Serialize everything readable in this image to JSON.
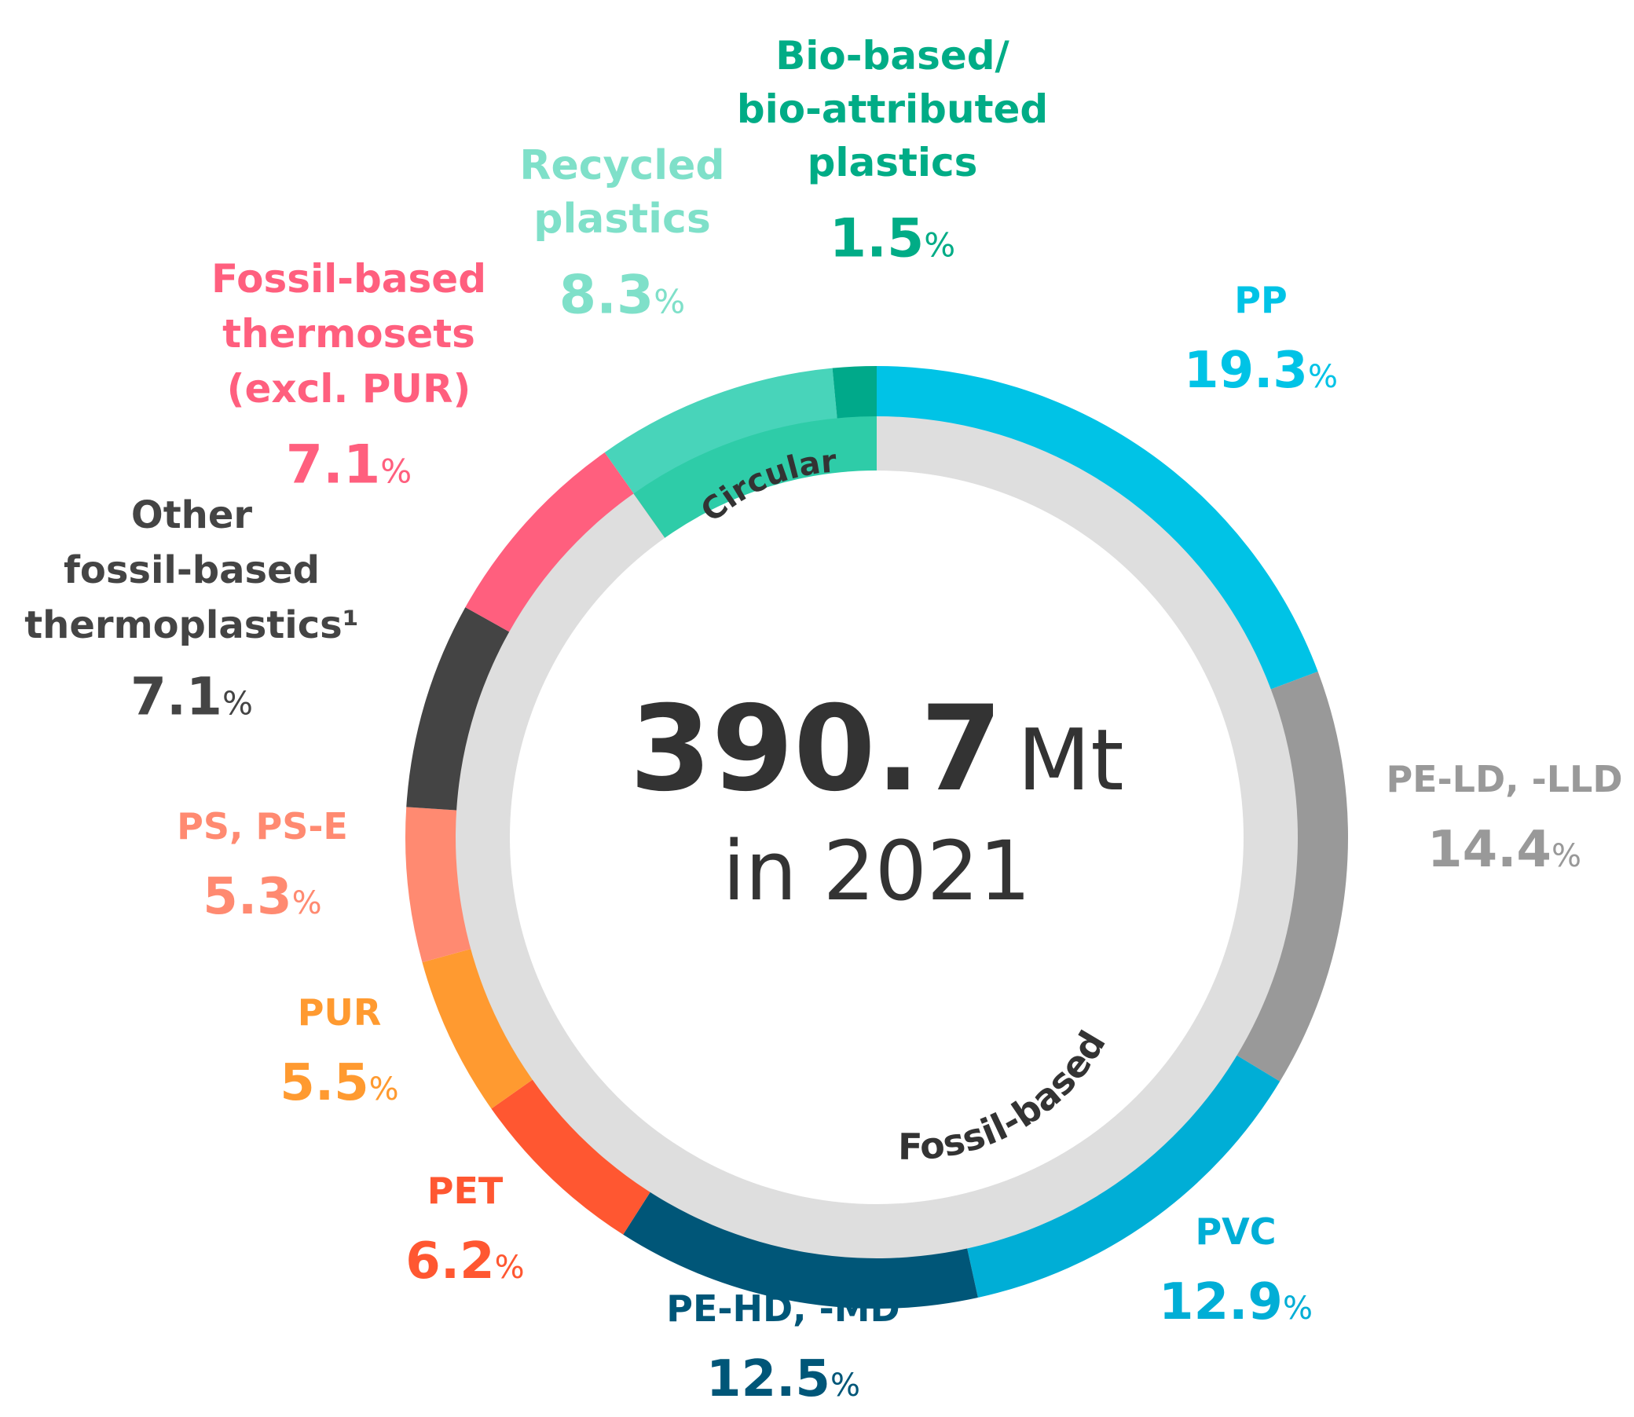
{
  "chart_data": {
    "type": "pie",
    "subtype": "donut",
    "unit_suffix": "%",
    "center": {
      "value": "390.7",
      "unit": "Mt",
      "subtitle": "in 2021"
    },
    "inner_ring": [
      {
        "name": "Circular",
        "value": 9.8,
        "color": "#2ECCA8"
      },
      {
        "name": "Fossil-based",
        "value": 90.2,
        "color": "#DEDEDE"
      }
    ],
    "slices": [
      {
        "key": "pp",
        "lines": [
          "PP"
        ],
        "value": 19.3,
        "value_text": "19.3",
        "color": "#00C3E6"
      },
      {
        "key": "peld",
        "lines": [
          "PE-LD, -LLD"
        ],
        "value": 14.4,
        "value_text": "14.4",
        "color": "#999999"
      },
      {
        "key": "pvc",
        "lines": [
          "PVC"
        ],
        "value": 12.9,
        "value_text": "12.9",
        "color": "#00AED6"
      },
      {
        "key": "pehd",
        "lines": [
          "PE-HD, -MD"
        ],
        "value": 12.5,
        "value_text": "12.5",
        "color": "#005678"
      },
      {
        "key": "pet",
        "lines": [
          "PET"
        ],
        "value": 6.2,
        "value_text": "6.2",
        "color": "#FF5731"
      },
      {
        "key": "pur",
        "lines": [
          "PUR"
        ],
        "value": 5.5,
        "value_text": "5.5",
        "color": "#FF9A30"
      },
      {
        "key": "ps",
        "lines": [
          "PS, PS-E"
        ],
        "value": 5.3,
        "value_text": "5.3",
        "color": "#FF8A71"
      },
      {
        "key": "other",
        "lines": [
          "Other",
          "fossil-based",
          "thermoplastics¹"
        ],
        "value": 7.1,
        "value_text": "7.1",
        "color": "#444444"
      },
      {
        "key": "thermosets",
        "lines": [
          "Fossil-based",
          "thermosets",
          "(excl. PUR)"
        ],
        "value": 7.1,
        "value_text": "7.1",
        "color": "#FF5F7E"
      },
      {
        "key": "recycled",
        "lines": [
          "Recycled",
          "plastics"
        ],
        "value": 8.3,
        "value_text": "8.3",
        "color": "#48D4BA",
        "label_color": "#7FE0C9"
      },
      {
        "key": "bio",
        "lines": [
          "Bio-based/",
          "bio-attributed",
          "plastics"
        ],
        "value": 1.5,
        "value_text": "1.5",
        "color": "#00A98A",
        "label_color": "#00AC86"
      }
    ]
  }
}
